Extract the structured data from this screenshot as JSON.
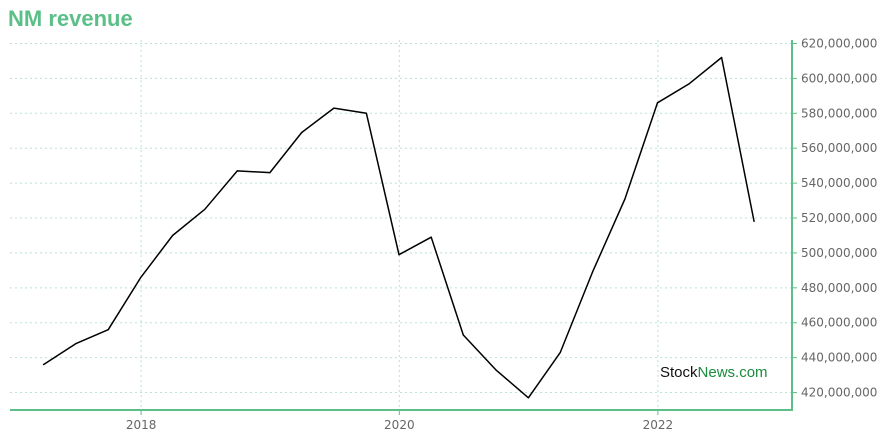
{
  "chart_data": {
    "type": "line",
    "title": "NM revenue",
    "xlabel": "",
    "ylabel": "",
    "x_ticks": [
      "2018",
      "2020",
      "2022"
    ],
    "y_ticks": [
      "420,000,000",
      "440,000,000",
      "460,000,000",
      "480,000,000",
      "500,000,000",
      "520,000,000",
      "540,000,000",
      "560,000,000",
      "580,000,000",
      "600,000,000",
      "620,000,000"
    ],
    "ylim": [
      410000000,
      622000000
    ],
    "grid": true,
    "series": [
      {
        "color": "#000000",
        "points": [
          {
            "x": "2017-03-31",
            "y": 436000000
          },
          {
            "x": "2017-06-30",
            "y": 448000000
          },
          {
            "x": "2017-09-30",
            "y": 456000000
          },
          {
            "x": "2017-12-31",
            "y": 486000000
          },
          {
            "x": "2018-03-31",
            "y": 510000000
          },
          {
            "x": "2018-06-30",
            "y": 525000000
          },
          {
            "x": "2018-09-30",
            "y": 547000000
          },
          {
            "x": "2018-12-31",
            "y": 546000000
          },
          {
            "x": "2019-03-31",
            "y": 569000000
          },
          {
            "x": "2019-06-30",
            "y": 583000000
          },
          {
            "x": "2019-09-30",
            "y": 580000000
          },
          {
            "x": "2019-12-31",
            "y": 499000000
          },
          {
            "x": "2020-03-31",
            "y": 509000000
          },
          {
            "x": "2020-06-30",
            "y": 453000000
          },
          {
            "x": "2020-09-30",
            "y": 433000000
          },
          {
            "x": "2020-12-31",
            "y": 417000000
          },
          {
            "x": "2021-03-31",
            "y": 443000000
          },
          {
            "x": "2021-06-30",
            "y": 489000000
          },
          {
            "x": "2021-09-30",
            "y": 531000000
          },
          {
            "x": "2021-12-31",
            "y": 586000000
          },
          {
            "x": "2022-03-31",
            "y": 597000000
          },
          {
            "x": "2022-06-30",
            "y": 612000000
          },
          {
            "x": "2022-09-30",
            "y": 518000000
          }
        ]
      }
    ],
    "colors": {
      "title": "#5cbf88",
      "axis": "#5cbf88",
      "grid": "#b9e3cd",
      "line": "#000000"
    }
  },
  "watermark": {
    "part1": "Stock",
    "part2": "News.com"
  }
}
